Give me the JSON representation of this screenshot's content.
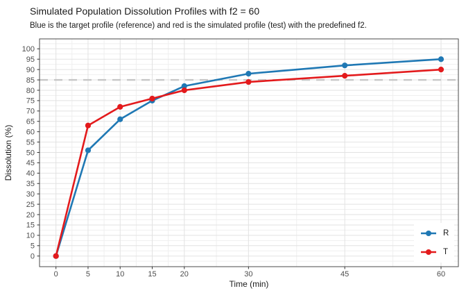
{
  "title": "Simulated Population Dissolution Profiles with f2 = 60",
  "subtitle": "Blue is the target profile (reference) and red is the simulated profile (test) with the predefined f2.",
  "chart_data": {
    "type": "line",
    "x": [
      0,
      5,
      10,
      15,
      20,
      30,
      45,
      60
    ],
    "series": [
      {
        "name": "R",
        "color": "#1f78b4",
        "values": [
          0,
          51,
          66,
          75,
          82,
          88,
          92,
          95
        ]
      },
      {
        "name": "T",
        "color": "#e31a1c",
        "values": [
          0,
          63,
          72,
          76,
          80,
          84,
          87,
          90
        ]
      }
    ],
    "reference_line": {
      "y": 85,
      "style": "dashed",
      "color": "#c6c6c6"
    },
    "title": "Simulated Population Dissolution Profiles with f2 = 60",
    "xlabel": "Time (min)",
    "ylabel": "Dissolution (%)",
    "x_ticks": [
      0,
      5,
      10,
      15,
      20,
      30,
      45,
      60
    ],
    "y_ticks": [
      0,
      5,
      10,
      15,
      20,
      25,
      30,
      35,
      40,
      45,
      50,
      55,
      60,
      65,
      70,
      75,
      80,
      85,
      90,
      95,
      100
    ],
    "xlim": [
      0,
      60
    ],
    "ylim": [
      0,
      100
    ],
    "grid": "on",
    "legend_position": "inside bottom-right"
  },
  "colors": {
    "reference_series": "#1f78b4",
    "test_series": "#e31a1c",
    "dashed_threshold": "#c6c6c6",
    "grid_major": "#e2e2e2",
    "grid_minor": "#efefef",
    "panel_border": "#4a4a4a",
    "axis_text": "#4d4d4d"
  }
}
